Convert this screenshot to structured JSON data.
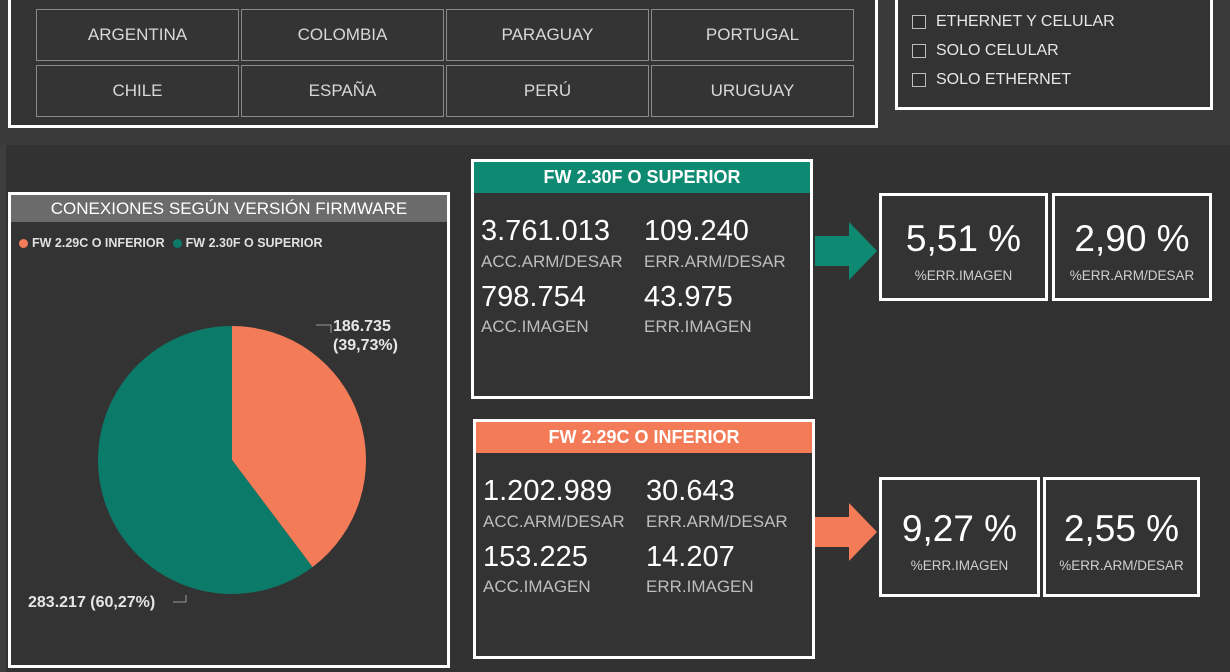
{
  "countries": [
    "ARGENTINA",
    "COLOMBIA",
    "PARAGUAY",
    "PORTUGAL",
    "CHILE",
    "ESPAÑA",
    "PERÚ",
    "URUGUAY"
  ],
  "connection_filter": {
    "options": [
      "ETHERNET Y CELULAR",
      "SOLO CELULAR",
      "SOLO ETHERNET"
    ]
  },
  "pie": {
    "title": "CONEXIONES SEGÚN VERSIÓN FIRMWARE",
    "legend": [
      "FW 2.29C O INFERIOR",
      "FW 2.30F O SUPERIOR"
    ],
    "label_inferior_value": "186.735",
    "label_inferior_pct": "(39,73%)",
    "label_superior": "283.217 (60,27%)"
  },
  "chart_data": {
    "type": "pie",
    "title": "CONEXIONES SEGÚN VERSIÓN FIRMWARE",
    "categories": [
      "FW 2.29C O INFERIOR",
      "FW 2.30F O SUPERIOR"
    ],
    "values": [
      186735,
      283217
    ],
    "percentages": [
      39.73,
      60.27
    ],
    "colors": [
      "#f47b57",
      "#0b7a68"
    ],
    "legend_position": "top-left"
  },
  "fw_superior": {
    "header": "FW 2.30F O SUPERIOR",
    "color": "#0e8a72",
    "acc_arm_value": "3.761.013",
    "acc_arm_label": "ACC.ARM/DESAR",
    "err_arm_value": "109.240",
    "err_arm_label": "ERR.ARM/DESAR",
    "acc_img_value": "798.754",
    "acc_img_label": "ACC.IMAGEN",
    "err_img_value": "43.975",
    "err_img_label": "ERR.IMAGEN",
    "pct_img_value": "5,51 %",
    "pct_img_label": "%ERR.IMAGEN",
    "pct_arm_value": "2,90 %",
    "pct_arm_label": "%ERR.ARM/DESAR"
  },
  "fw_inferior": {
    "header": "FW 2.29C O INFERIOR",
    "color": "#f47b57",
    "acc_arm_value": "1.202.989",
    "acc_arm_label": "ACC.ARM/DESAR",
    "err_arm_value": "30.643",
    "err_arm_label": "ERR.ARM/DESAR",
    "acc_img_value": "153.225",
    "acc_img_label": "ACC.IMAGEN",
    "err_img_value": "14.207",
    "err_img_label": "ERR.IMAGEN",
    "pct_img_value": "9,27 %",
    "pct_img_label": "%ERR.IMAGEN",
    "pct_arm_value": "2,55 %",
    "pct_arm_label": "%ERR.ARM/DESAR"
  }
}
